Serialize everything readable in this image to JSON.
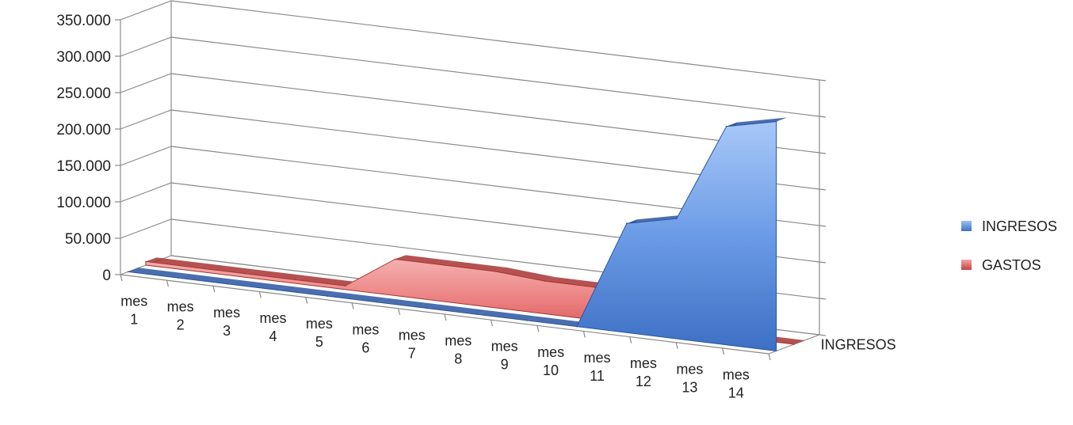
{
  "chart_data": {
    "type": "area",
    "view": "3d",
    "categories": [
      [
        "mes",
        "1"
      ],
      [
        "mes",
        "2"
      ],
      [
        "mes",
        "3"
      ],
      [
        "mes",
        "4"
      ],
      [
        "mes",
        "5"
      ],
      [
        "mes",
        "6"
      ],
      [
        "mes",
        "7"
      ],
      [
        "mes",
        "8"
      ],
      [
        "mes",
        "9"
      ],
      [
        "mes",
        "10"
      ],
      [
        "mes",
        "11"
      ],
      [
        "mes",
        "12"
      ],
      [
        "mes",
        "13"
      ],
      [
        "mes",
        "14"
      ]
    ],
    "series": [
      {
        "name": "INGRESOS",
        "color": "#4f81d4",
        "values": [
          0,
          0,
          0,
          0,
          0,
          0,
          0,
          0,
          0,
          0,
          150000,
          165000,
          300000,
          315000
        ]
      },
      {
        "name": "GASTOS",
        "color": "#e05a5a",
        "values": [
          5000,
          5000,
          5000,
          5000,
          5000,
          50000,
          50000,
          50000,
          45000,
          45000,
          0,
          0,
          0,
          0
        ]
      }
    ],
    "y_ticks": [
      "0",
      "50.000",
      "100.000",
      "150.000",
      "200.000",
      "250.000",
      "300.000",
      "350.000"
    ],
    "ylim": [
      0,
      350000
    ],
    "depth_axis_label": "INGRESOS",
    "legend": [
      "INGRESOS",
      "GASTOS"
    ],
    "legend_position": "right",
    "grid": true
  }
}
